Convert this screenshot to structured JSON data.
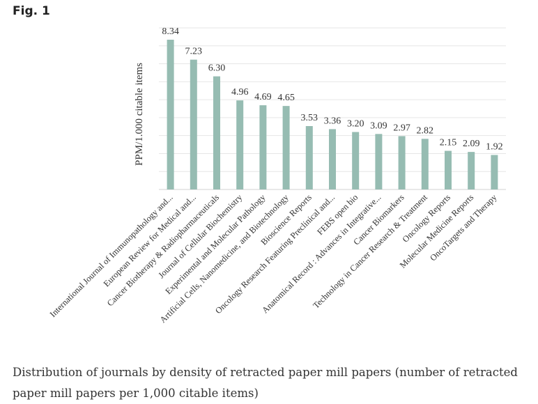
{
  "figure": {
    "label": "Fig. 1",
    "caption": "Distribution of journals by density of retracted paper mill papers (number of retracted paper mill papers per 1,000 citable items)"
  },
  "chart_data": {
    "type": "bar",
    "title": "",
    "xlabel": "",
    "ylabel": "PPM/1.000 citable items",
    "ylim": [
      0,
      9
    ],
    "grid": true,
    "bar_color": "#96BCB2",
    "categories": [
      "International Journal of Immunopathology and...",
      "European Review for Medical and...",
      "Cancer Biotherapy & Radiopharmaceuticals",
      "Journal of Cellular Biochemistry",
      "Experimental and Molecular Pathology",
      "Artificial Cells, Nanomedicine, and Biotechnology",
      "Bioscience Reports",
      "Oncology Research Featuring Preclinical and...",
      "FEBS open bio",
      "Anatomical Record : Advances in Integrative...",
      "Cancer Biomarkers",
      "Technology in Cancer Research & Treatment",
      "Oncology Reports",
      "Molecular Medicine Reports",
      "OncoTargets and Therapy"
    ],
    "values": [
      8.34,
      7.23,
      6.3,
      4.96,
      4.69,
      4.65,
      3.53,
      3.36,
      3.2,
      3.09,
      2.97,
      2.82,
      2.15,
      2.09,
      1.92
    ],
    "value_labels": [
      "8.34",
      "7.23",
      "6.30",
      "4.96",
      "4.69",
      "4.65",
      "3.53",
      "3.36",
      "3.20",
      "3.09",
      "2.97",
      "2.82",
      "2.15",
      "2.09",
      "1.92"
    ]
  }
}
